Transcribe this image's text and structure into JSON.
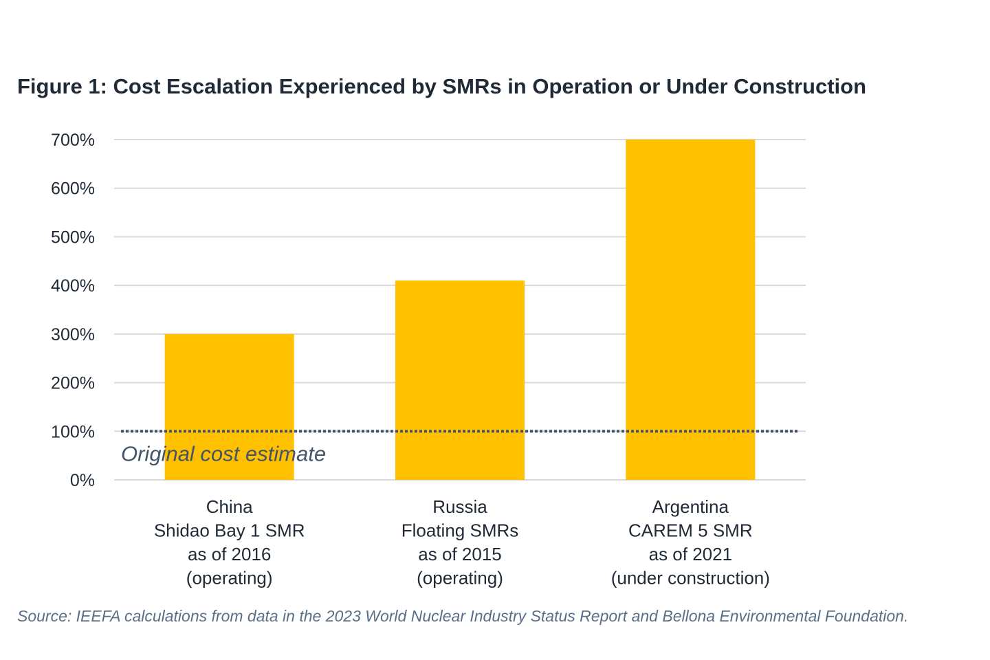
{
  "chart_data": {
    "type": "bar",
    "title": "Figure 1: Cost Escalation Experienced by SMRs in Operation or Under Construction",
    "categories": [
      [
        "China",
        "Shidao Bay 1 SMR",
        "as of 2016",
        "(operating)"
      ],
      [
        "Russia",
        "Floating SMRs",
        "as of 2015",
        "(operating)"
      ],
      [
        "Argentina",
        "CAREM 5 SMR",
        "as of 2021",
        "(under construction)"
      ]
    ],
    "values": [
      300,
      410,
      700
    ],
    "ylim": [
      0,
      700
    ],
    "yticks": [
      "0%",
      "100%",
      "200%",
      "300%",
      "400%",
      "500%",
      "600%",
      "700%"
    ],
    "xlabel": "",
    "ylabel": "",
    "grid": true,
    "reference_line": {
      "value": 100,
      "label": "Original cost estimate",
      "style": "dotted",
      "color": "#44546A"
    },
    "colors": {
      "bar": "#FFC000",
      "grid": "#D9D9D9",
      "text": "#1F2A36"
    }
  },
  "source": "Source: IEEFA calculations from data in the 2023 World Nuclear Industry Status Report and Bellona Environmental Foundation."
}
